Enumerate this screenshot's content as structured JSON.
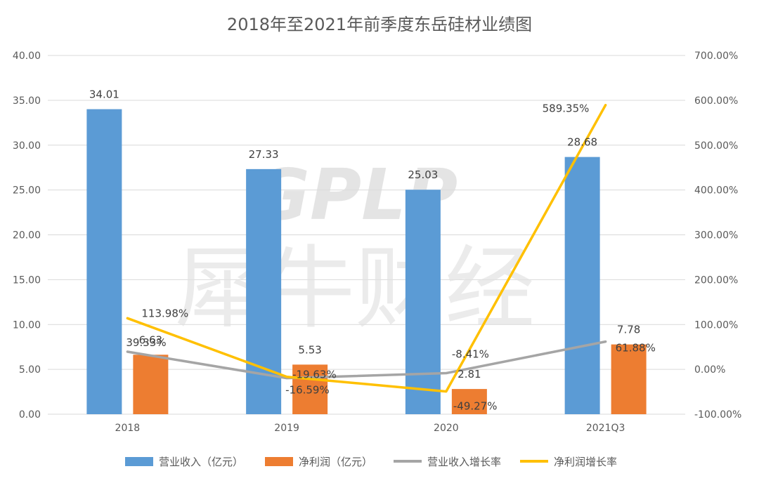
{
  "chart_data": {
    "type": "bar",
    "title": "2018年至2021年前季度东岳硅材业绩图",
    "categories": [
      "2018",
      "2019",
      "2020",
      "2021Q3"
    ],
    "left_axis": {
      "min": 0,
      "max": 40,
      "step": 5,
      "tick_labels": [
        "0.00",
        "5.00",
        "10.00",
        "15.00",
        "20.00",
        "25.00",
        "30.00",
        "35.00",
        "40.00"
      ]
    },
    "right_axis": {
      "min": -100,
      "max": 700,
      "step": 100,
      "tick_labels": [
        "-100.00%",
        "0.00%",
        "100.00%",
        "200.00%",
        "300.00%",
        "400.00%",
        "500.00%",
        "600.00%",
        "700.00%"
      ]
    },
    "grid": true,
    "legend_position": "bottom",
    "series": [
      {
        "name": "营业收入（亿元）",
        "kind": "bar",
        "axis": "left",
        "color": "#5B9BD5",
        "values": [
          34.01,
          27.33,
          25.03,
          28.68
        ],
        "labels": [
          "34.01",
          "27.33",
          "25.03",
          "28.68"
        ]
      },
      {
        "name": "净利润（亿元）",
        "kind": "bar",
        "axis": "left",
        "color": "#ED7D31",
        "values": [
          6.63,
          5.53,
          2.81,
          7.78
        ],
        "labels": [
          "6.63",
          "5.53",
          "2.81",
          "7.78"
        ]
      },
      {
        "name": "营业收入增长率",
        "kind": "line",
        "axis": "right",
        "color": "#A5A5A5",
        "values": [
          39.33,
          -19.63,
          -8.41,
          61.88
        ],
        "labels": [
          "39.33%",
          "-19.63%",
          "-8.41%",
          "61.88%"
        ]
      },
      {
        "name": "净利润增长率",
        "kind": "line",
        "axis": "right",
        "color": "#FFC000",
        "values": [
          113.98,
          -16.59,
          -49.27,
          589.35
        ],
        "labels": [
          "113.98%",
          "-16.59%",
          "-49.27%",
          "589.35%"
        ]
      }
    ],
    "watermark": {
      "text_en": "GPLP",
      "text_cn": "犀牛财经"
    }
  }
}
